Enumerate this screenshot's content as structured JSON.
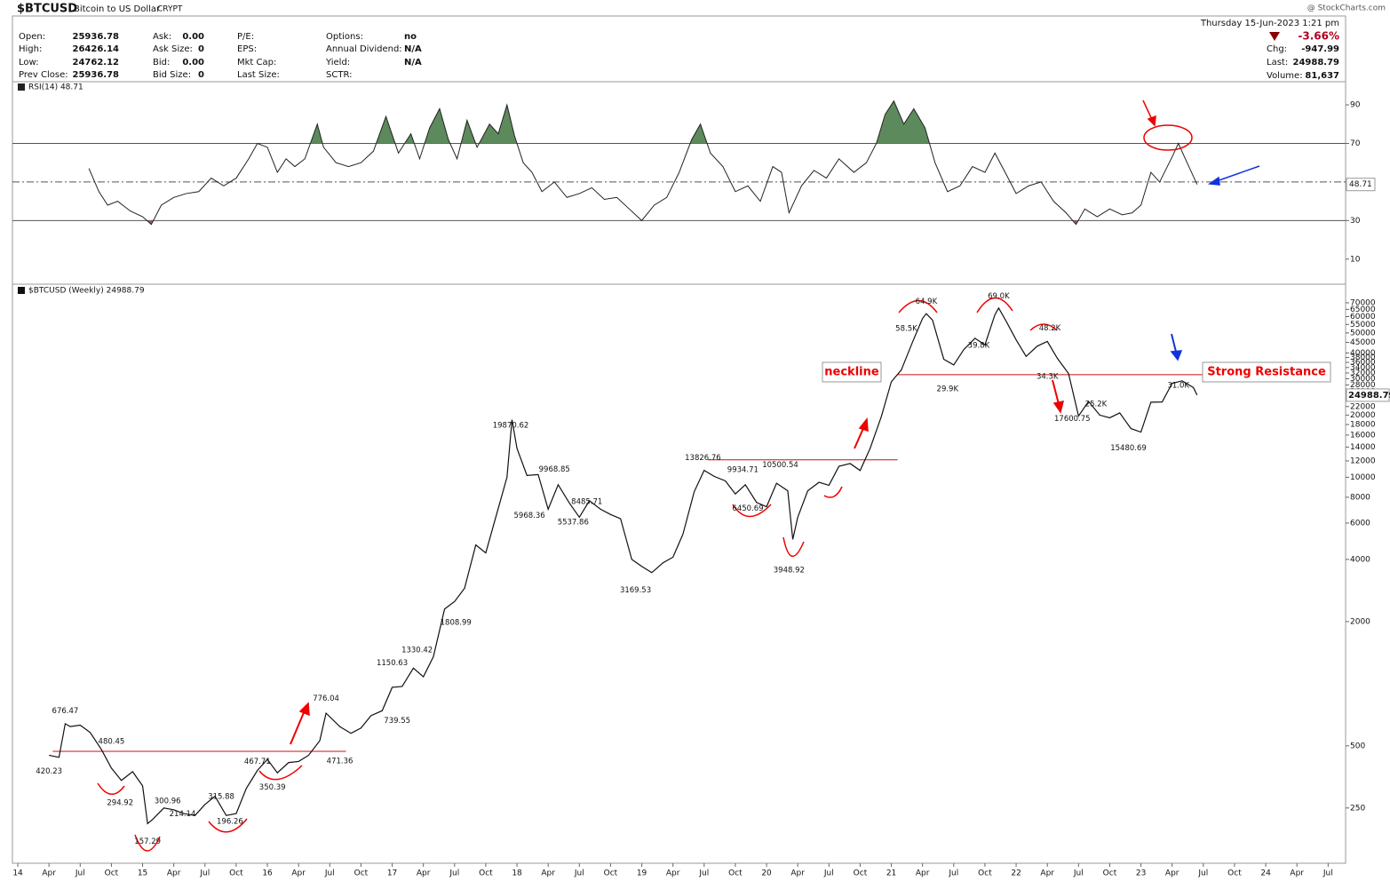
{
  "header": {
    "symbol": "$BTCUSD",
    "name": "Bitcoin to US Dollar",
    "exchange": "CRYPT",
    "source": "@ StockCharts.com",
    "quote": [
      [
        {
          "label": "Open:",
          "value": "25936.78"
        },
        {
          "label": "High:",
          "value": "26426.14"
        },
        {
          "label": "Low:",
          "value": "24762.12"
        },
        {
          "label": "Prev Close:",
          "value": "25936.78"
        }
      ],
      [
        {
          "label": "Ask:",
          "value": "0.00"
        },
        {
          "label": "Ask Size:",
          "value": "0"
        },
        {
          "label": "Bid:",
          "value": "0.00"
        },
        {
          "label": "Bid Size:",
          "value": "0"
        }
      ],
      [
        {
          "label": "P/E:"
        },
        {
          "label": "EPS:"
        },
        {
          "label": "Mkt Cap:"
        },
        {
          "label": "Last Size:"
        }
      ],
      [
        {
          "label": "Options:",
          "value": "no"
        },
        {
          "label": "Annual Dividend:",
          "value": "N/A"
        },
        {
          "label": "Yield:",
          "value": "N/A"
        },
        {
          "label": "SCTR:"
        }
      ]
    ],
    "date": "Thursday  15-Jun-2023  1:21 pm",
    "change_pct": "-3.66%",
    "right": [
      {
        "label": "Chg:",
        "value": "-947.99"
      },
      {
        "label": "Last:",
        "value": "24988.79"
      },
      {
        "label": "Volume:",
        "value": "81,637"
      }
    ]
  },
  "chart_data": [
    {
      "type": "line",
      "title": "RSI(14) 48.71",
      "color": "#222222",
      "last_label": "48.71",
      "ylim": [
        -3,
        102
      ],
      "yticks": [
        10,
        30,
        70,
        90
      ],
      "levels": [
        30,
        50,
        70
      ],
      "over_color": "#5d8a5d",
      "under_color": "#a06060",
      "x": [
        2014.57,
        2014.65,
        2014.72,
        2014.8,
        2014.9,
        2015.0,
        2015.07,
        2015.15,
        2015.25,
        2015.35,
        2015.45,
        2015.55,
        2015.65,
        2015.75,
        2015.85,
        2015.92,
        2016.0,
        2016.08,
        2016.15,
        2016.22,
        2016.3,
        2016.4,
        2016.45,
        2016.55,
        2016.65,
        2016.75,
        2016.85,
        2016.95,
        2017.05,
        2017.15,
        2017.22,
        2017.3,
        2017.38,
        2017.45,
        2017.52,
        2017.6,
        2017.68,
        2017.78,
        2017.85,
        2017.92,
        2017.98,
        2018.05,
        2018.12,
        2018.2,
        2018.3,
        2018.4,
        2018.5,
        2018.6,
        2018.7,
        2018.8,
        2018.9,
        2019.0,
        2019.1,
        2019.2,
        2019.3,
        2019.4,
        2019.47,
        2019.55,
        2019.65,
        2019.75,
        2019.85,
        2019.95,
        2020.05,
        2020.12,
        2020.18,
        2020.28,
        2020.38,
        2020.48,
        2020.58,
        2020.7,
        2020.8,
        2020.88,
        2020.95,
        2021.02,
        2021.1,
        2021.18,
        2021.27,
        2021.35,
        2021.45,
        2021.55,
        2021.65,
        2021.75,
        2021.83,
        2021.92,
        2022.0,
        2022.1,
        2022.2,
        2022.3,
        2022.4,
        2022.48,
        2022.55,
        2022.65,
        2022.75,
        2022.85,
        2022.93,
        2023.0,
        2023.08,
        2023.15,
        2023.25,
        2023.3,
        2023.37,
        2023.45
      ],
      "values": [
        57,
        45,
        38,
        40,
        35,
        32,
        28,
        38,
        42,
        44,
        45,
        52,
        48,
        52,
        62,
        70,
        68,
        55,
        62,
        58,
        62,
        80,
        68,
        60,
        58,
        60,
        66,
        84,
        65,
        75,
        62,
        78,
        88,
        72,
        62,
        82,
        68,
        80,
        75,
        90,
        74,
        60,
        55,
        45,
        50,
        42,
        44,
        47,
        41,
        42,
        36,
        30,
        38,
        42,
        55,
        72,
        80,
        65,
        58,
        45,
        48,
        40,
        58,
        55,
        34,
        48,
        56,
        52,
        62,
        55,
        60,
        70,
        85,
        92,
        80,
        88,
        78,
        60,
        45,
        48,
        58,
        55,
        65,
        54,
        44,
        48,
        50,
        40,
        34,
        28,
        36,
        32,
        36,
        33,
        34,
        38,
        55,
        50,
        63,
        70,
        60,
        48.71
      ]
    },
    {
      "type": "line",
      "title": "$BTCUSD (Weekly) 24988.79",
      "color": "#111111",
      "log": true,
      "last_label": "24988.79",
      "ylim": [
        135,
        78000
      ],
      "xlim": [
        2013.957,
        2024.64
      ],
      "xticks": [
        {
          "value": 2014,
          "label": "14"
        },
        {
          "value": 2014.25,
          "label": "Apr"
        },
        {
          "value": 2014.5,
          "label": "Jul"
        },
        {
          "value": 2014.75,
          "label": "Oct"
        },
        {
          "value": 2015,
          "label": "15"
        },
        {
          "value": 2015.25,
          "label": "Apr"
        },
        {
          "value": 2015.5,
          "label": "Jul"
        },
        {
          "value": 2015.75,
          "label": "Oct"
        },
        {
          "value": 2016,
          "label": "16"
        },
        {
          "value": 2016.25,
          "label": "Apr"
        },
        {
          "value": 2016.5,
          "label": "Jul"
        },
        {
          "value": 2016.75,
          "label": "Oct"
        },
        {
          "value": 2017,
          "label": "17"
        },
        {
          "value": 2017.25,
          "label": "Apr"
        },
        {
          "value": 2017.5,
          "label": "Jul"
        },
        {
          "value": 2017.75,
          "label": "Oct"
        },
        {
          "value": 2018,
          "label": "18"
        },
        {
          "value": 2018.25,
          "label": "Apr"
        },
        {
          "value": 2018.5,
          "label": "Jul"
        },
        {
          "value": 2018.75,
          "label": "Oct"
        },
        {
          "value": 2019,
          "label": "19"
        },
        {
          "value": 2019.25,
          "label": "Apr"
        },
        {
          "value": 2019.5,
          "label": "Jul"
        },
        {
          "value": 2019.75,
          "label": "Oct"
        },
        {
          "value": 2020,
          "label": "20"
        },
        {
          "value": 2020.25,
          "label": "Apr"
        },
        {
          "value": 2020.5,
          "label": "Jul"
        },
        {
          "value": 2020.75,
          "label": "Oct"
        },
        {
          "value": 2021,
          "label": "21"
        },
        {
          "value": 2021.25,
          "label": "Apr"
        },
        {
          "value": 2021.5,
          "label": "Jul"
        },
        {
          "value": 2021.75,
          "label": "Oct"
        },
        {
          "value": 2022,
          "label": "22"
        },
        {
          "value": 2022.25,
          "label": "Apr"
        },
        {
          "value": 2022.5,
          "label": "Jul"
        },
        {
          "value": 2022.75,
          "label": "Oct"
        },
        {
          "value": 2023,
          "label": "23"
        },
        {
          "value": 2023.25,
          "label": "Apr"
        },
        {
          "value": 2023.5,
          "label": "Jul"
        },
        {
          "value": 2023.75,
          "label": "Oct"
        },
        {
          "value": 2024,
          "label": "24"
        },
        {
          "value": 2024.25,
          "label": "Apr"
        },
        {
          "value": 2024.5,
          "label": "Jul"
        }
      ],
      "yticks": [
        250,
        500,
        2000,
        4000,
        6000,
        8000,
        10000,
        12000,
        14000,
        16000,
        18000,
        20000,
        22000,
        24000,
        26000,
        28000,
        30000,
        32000,
        34000,
        36000,
        38000,
        40000,
        45000,
        50000,
        55000,
        60000,
        65000,
        70000
      ],
      "x": [
        2014.25,
        2014.33,
        2014.38,
        2014.42,
        2014.5,
        2014.58,
        2014.67,
        2014.75,
        2014.83,
        2014.92,
        2015.0,
        2015.04,
        2015.08,
        2015.17,
        2015.25,
        2015.33,
        2015.42,
        2015.5,
        2015.58,
        2015.67,
        2015.75,
        2015.83,
        2015.92,
        2016.0,
        2016.08,
        2016.17,
        2016.25,
        2016.33,
        2016.42,
        2016.47,
        2016.58,
        2016.67,
        2016.75,
        2016.83,
        2016.92,
        2017.0,
        2017.08,
        2017.17,
        2017.25,
        2017.33,
        2017.42,
        2017.5,
        2017.58,
        2017.67,
        2017.75,
        2017.83,
        2017.92,
        2017.96,
        2018.0,
        2018.08,
        2018.17,
        2018.25,
        2018.33,
        2018.42,
        2018.5,
        2018.58,
        2018.67,
        2018.75,
        2018.83,
        2018.92,
        2019.0,
        2019.08,
        2019.17,
        2019.25,
        2019.33,
        2019.42,
        2019.5,
        2019.58,
        2019.67,
        2019.75,
        2019.83,
        2019.92,
        2020.0,
        2020.08,
        2020.17,
        2020.21,
        2020.25,
        2020.33,
        2020.42,
        2020.5,
        2020.58,
        2020.67,
        2020.75,
        2020.83,
        2020.92,
        2021.0,
        2021.08,
        2021.17,
        2021.25,
        2021.28,
        2021.33,
        2021.42,
        2021.5,
        2021.58,
        2021.67,
        2021.75,
        2021.83,
        2021.86,
        2021.92,
        2022.0,
        2022.08,
        2022.17,
        2022.25,
        2022.33,
        2022.42,
        2022.5,
        2022.58,
        2022.67,
        2022.75,
        2022.83,
        2022.92,
        2023.0,
        2023.08,
        2023.17,
        2023.25,
        2023.33,
        2023.42,
        2023.45
      ],
      "values": [
        450,
        440,
        640,
        620,
        630,
        580,
        480,
        390,
        340,
        375,
        320,
        210,
        220,
        250,
        245,
        235,
        230,
        260,
        285,
        230,
        235,
        310,
        380,
        430,
        370,
        415,
        420,
        450,
        530,
        720,
        620,
        575,
        610,
        700,
        740,
        960,
        970,
        1190,
        1080,
        1350,
        2300,
        2500,
        2900,
        4700,
        4300,
        6400,
        10000,
        19000,
        13800,
        10200,
        10300,
        7000,
        9200,
        7500,
        6400,
        7700,
        7000,
        6600,
        6300,
        4000,
        3700,
        3450,
        3850,
        4100,
        5300,
        8500,
        10800,
        10100,
        9600,
        8300,
        9200,
        7550,
        7200,
        9350,
        8600,
        5000,
        6400,
        8600,
        9450,
        9140,
        11300,
        11650,
        10780,
        13800,
        19700,
        29000,
        33100,
        45200,
        58800,
        62000,
        57700,
        37300,
        35000,
        41500,
        47100,
        43800,
        61300,
        66000,
        57000,
        46300,
        38500,
        43200,
        45500,
        37700,
        31800,
        19800,
        23300,
        20000,
        19400,
        20500,
        17200,
        16550,
        23100,
        23150,
        28500,
        29300,
        27200,
        24988.79
      ],
      "levels": [
        {
          "value": 470,
          "x": [
            2014.28,
            2016.63
          ]
        },
        {
          "value": 12150,
          "x": [
            2019.53,
            2021.05
          ]
        },
        {
          "value": 31400,
          "x": [
            2021.05,
            2023.55
          ]
        }
      ],
      "level_color": "#cc1111",
      "notes": [
        {
          "text": "neckline"
        },
        {
          "text": "Strong Resistance"
        }
      ],
      "annotations": [
        {
          "x": 2014.38,
          "value": 676.47
        },
        {
          "x": 2014.25,
          "value": 420.23
        },
        {
          "x": 2014.75,
          "value": 480.45
        },
        {
          "x": 2014.82,
          "value": 294.92
        },
        {
          "x": 2015.04,
          "value": 157.29
        },
        {
          "x": 2015.2,
          "value": 300.96
        },
        {
          "x": 2015.32,
          "value": 214.14
        },
        {
          "x": 2015.63,
          "value": 315.88
        },
        {
          "x": 2015.7,
          "value": 196.26
        },
        {
          "x": 2015.92,
          "value": 467.71
        },
        {
          "x": 2016.04,
          "value": 350.39
        },
        {
          "x": 2016.47,
          "value": 776.04
        },
        {
          "x": 2016.58,
          "value": 471.36
        },
        {
          "x": 2017.0,
          "value": 1150.63
        },
        {
          "x": 2017.2,
          "value": 1330.42
        },
        {
          "x": 2017.04,
          "value": 739.55
        },
        {
          "x": 2017.51,
          "value": 1808.99
        },
        {
          "x": 2017.95,
          "value": 19870.62
        },
        {
          "x": 2018.1,
          "value": 5968.36
        },
        {
          "x": 2018.3,
          "value": 9968.85
        },
        {
          "x": 2018.56,
          "value": 8485.71
        },
        {
          "x": 2018.45,
          "value": 5537.86
        },
        {
          "x": 2018.95,
          "value": 3169.53
        },
        {
          "x": 2019.49,
          "value": 13826.76
        },
        {
          "x": 2019.81,
          "value": 9934.71
        },
        {
          "x": 2020.11,
          "value": 10500.54
        },
        {
          "x": 2019.85,
          "value": 6450.69
        },
        {
          "x": 2020.18,
          "value": 3948.92
        },
        {
          "x": 2021.12,
          "value": 58500,
          "label": "58.5K"
        },
        {
          "x": 2021.28,
          "value": 64900,
          "label": "64.9K"
        },
        {
          "x": 2021.86,
          "value": 69000,
          "label": "69.0K"
        },
        {
          "x": 2022.27,
          "value": 48200,
          "label": "48.2K"
        },
        {
          "x": 2021.7,
          "value": 39800,
          "label": "39.8K"
        },
        {
          "x": 2021.45,
          "value": 29900,
          "label": "29.9K"
        },
        {
          "x": 2022.25,
          "value": 34300,
          "label": "34.3K"
        },
        {
          "x": 2022.64,
          "value": 25200,
          "label": "25.2K"
        },
        {
          "x": 2022.45,
          "value": 17600.75
        },
        {
          "x": 2022.9,
          "value": 15480.69
        },
        {
          "x": 2023.3,
          "value": 31000,
          "label": "31.0K"
        }
      ]
    }
  ]
}
